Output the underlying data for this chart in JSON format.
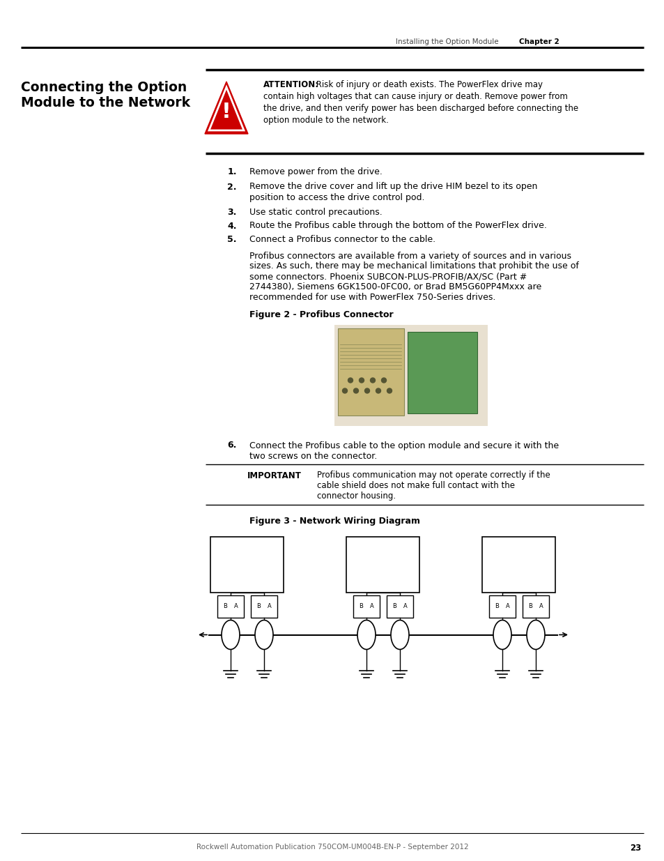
{
  "page_title_header": "Installing the Option Module",
  "chapter": "Chapter 2",
  "section_title_line1": "Connecting the Option",
  "section_title_line2": "Module to the Network",
  "attention_bold": "ATTENTION:",
  "attention_rest": " Risk of injury or death exists. The PowerFlex drive may",
  "attention_line2": "contain high voltages that can cause injury or death. Remove power from",
  "attention_line3": "the drive, and then verify power has been discharged before connecting the",
  "attention_line4": "option module to the network.",
  "step1": "Remove power from the drive.",
  "step2a": "Remove the drive cover and lift up the drive HIM bezel to its open",
  "step2b": "position to access the drive control pod.",
  "step3": "Use static control precautions.",
  "step4": "Route the Profibus cable through the bottom of the PowerFlex drive.",
  "step5": "Connect a Profibus connector to the cable.",
  "para1": "Profibus connectors are available from a variety of sources and in various",
  "para2": "sizes. As such, there may be mechanical limitations that prohibit the use of",
  "para3": "some connectors. Phoenix SUBCON-PLUS-PROFIB/AX/SC (Part #",
  "para4": "2744380), Siemens 6GK1500-0FC00, or Brad BM5G60PP4Mxxx are",
  "para5": "recommended for use with PowerFlex 750-Series drives.",
  "figure2_caption": "Figure 2 - Profibus Connector",
  "step6a": "Connect the Profibus cable to the option module and secure it with the",
  "step6b": "two screws on the connector.",
  "important_label": "IMPORTANT",
  "imp1": "Profibus communication may not operate correctly if the",
  "imp2": "cable shield does not make full contact with the",
  "imp3": "connector housing.",
  "figure3_caption": "Figure 3 - Network Wiring Diagram",
  "footer_text": "Rockwell Automation Publication 750COM-UM004B-EN-P - September 2012",
  "page_number": "23",
  "bg_color": "#ffffff"
}
